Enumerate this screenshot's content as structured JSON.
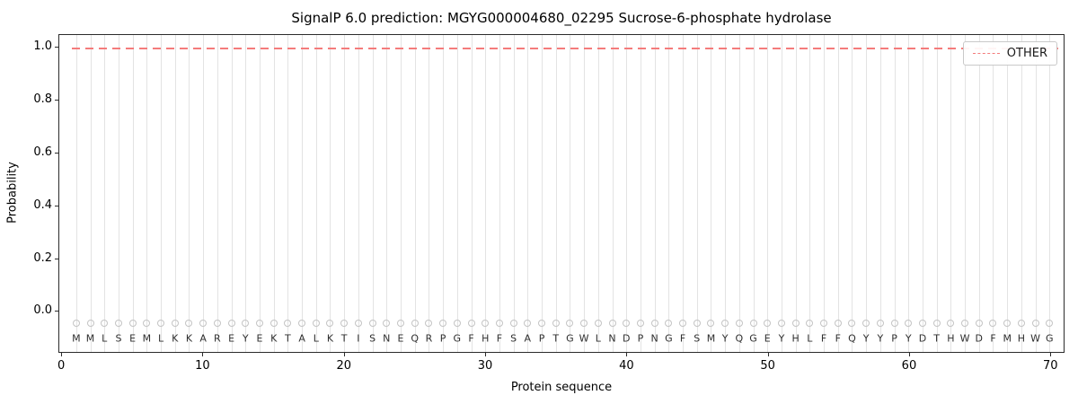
{
  "chart_data": {
    "type": "line",
    "title": "SignalP 6.0 prediction: MGYG000004680_02295 Sucrose-6-phosphate hydrolase",
    "xlabel": "Protein sequence",
    "ylabel": "Probability",
    "xlim": [
      -0.2,
      71.0
    ],
    "ylim": [
      -0.158,
      1.048
    ],
    "x_ticks": [
      0,
      10,
      20,
      30,
      40,
      50,
      60,
      70
    ],
    "y_ticks": [
      0.0,
      0.2,
      0.4,
      0.6,
      0.8,
      1.0
    ],
    "grid": "vertical gridline at every residue position",
    "legend": {
      "position": "top-right",
      "entries": [
        {
          "label": "OTHER",
          "color": "#f47b7b",
          "style": "dashed"
        }
      ]
    },
    "series": [
      {
        "name": "OTHER",
        "style": "dashed",
        "color": "#f47b7b",
        "y_constant": 1.0,
        "x_start": 0.7,
        "x_end": 70.6
      }
    ],
    "marker_y": -0.05,
    "marker_color": "#c4c4c4",
    "sequence": [
      "M",
      "M",
      "L",
      "S",
      "E",
      "M",
      "L",
      "K",
      "K",
      "A",
      "R",
      "E",
      "Y",
      "E",
      "K",
      "T",
      "A",
      "L",
      "K",
      "T",
      "I",
      "S",
      "N",
      "E",
      "Q",
      "R",
      "P",
      "G",
      "F",
      "H",
      "F",
      "S",
      "A",
      "P",
      "T",
      "G",
      "W",
      "L",
      "N",
      "D",
      "P",
      "N",
      "G",
      "F",
      "S",
      "M",
      "Y",
      "Q",
      "G",
      "E",
      "Y",
      "H",
      "L",
      "F",
      "F",
      "Q",
      "Y",
      "Y",
      "P",
      "Y",
      "D",
      "T",
      "H",
      "W",
      "D",
      "F",
      "M",
      "H",
      "W",
      "G"
    ]
  }
}
